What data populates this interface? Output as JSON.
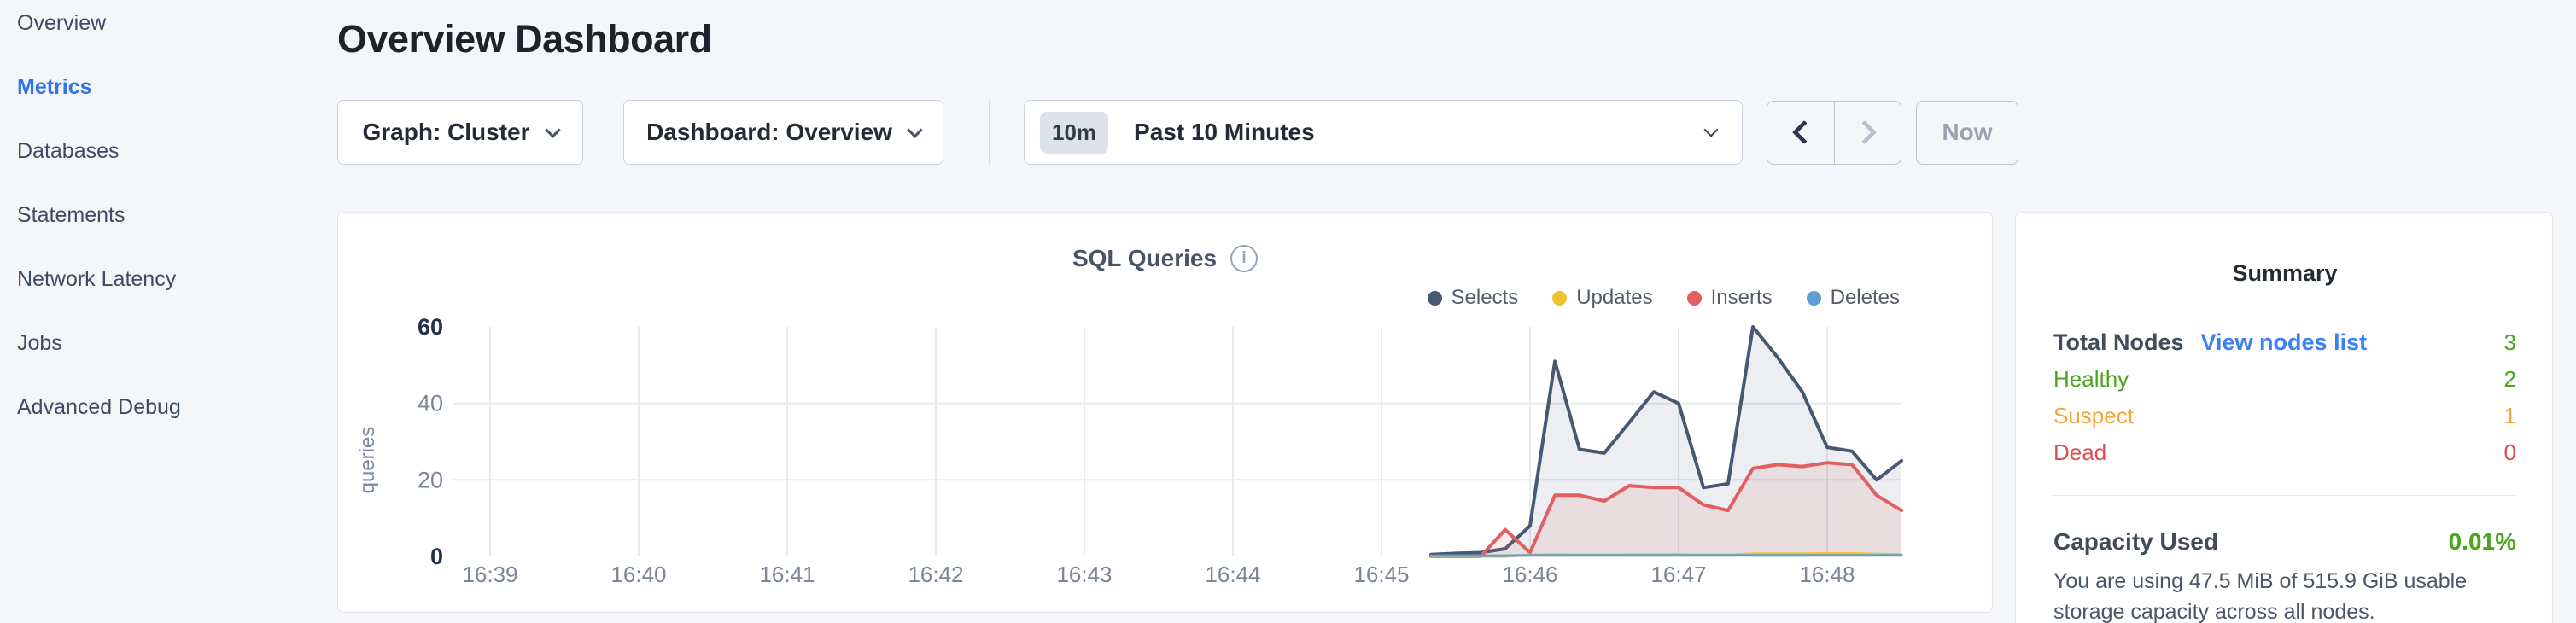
{
  "sidebar": {
    "items": [
      {
        "label": "Overview",
        "active": false
      },
      {
        "label": "Metrics",
        "active": true
      },
      {
        "label": "Databases",
        "active": false
      },
      {
        "label": "Statements",
        "active": false
      },
      {
        "label": "Network Latency",
        "active": false
      },
      {
        "label": "Jobs",
        "active": false
      },
      {
        "label": "Advanced Debug",
        "active": false
      }
    ]
  },
  "header": {
    "title": "Overview Dashboard"
  },
  "toolbar": {
    "graph_dropdown": "Graph: Cluster",
    "dashboard_dropdown": "Dashboard: Overview",
    "time_badge": "10m",
    "time_label": "Past 10 Minutes",
    "now_label": "Now"
  },
  "chart_data": {
    "type": "area",
    "title": "SQL Queries",
    "ylabel": "queries",
    "ylim": [
      0,
      60
    ],
    "grid": true,
    "legend_position": "top-right",
    "x_unit": "time (HH:MM)",
    "x_ticks": [
      {
        "label": "16:39",
        "t": 39
      },
      {
        "label": "16:40",
        "t": 40
      },
      {
        "label": "16:41",
        "t": 41
      },
      {
        "label": "16:42",
        "t": 42
      },
      {
        "label": "16:43",
        "t": 43
      },
      {
        "label": "16:44",
        "t": 44
      },
      {
        "label": "16:45",
        "t": 45
      },
      {
        "label": "16:46",
        "t": 46
      },
      {
        "label": "16:47",
        "t": 47
      },
      {
        "label": "16:48",
        "t": 48
      }
    ],
    "y_ticks": [
      {
        "label": "0",
        "value": 0,
        "bold": true
      },
      {
        "label": "20",
        "value": 20,
        "bold": false
      },
      {
        "label": "40",
        "value": 40,
        "bold": false
      },
      {
        "label": "60",
        "value": 60,
        "bold": true
      }
    ],
    "y_gridlines": [
      20,
      40
    ],
    "x": [
      45.333,
      45.5,
      45.667,
      45.833,
      46.0,
      46.167,
      46.333,
      46.5,
      46.667,
      46.833,
      47.0,
      47.167,
      47.333,
      47.5,
      47.667,
      47.833,
      48.0,
      48.167,
      48.333,
      48.5
    ],
    "series": [
      {
        "name": "Selects",
        "color": "#475872",
        "fill_opacity": 0.1,
        "width": 4,
        "values": [
          0.5,
          0.8,
          1,
          2,
          8,
          51,
          28,
          27,
          35,
          43,
          40,
          18,
          19,
          60,
          52,
          43,
          28.5,
          27.5,
          20,
          25
        ]
      },
      {
        "name": "Inserts",
        "color": "#e25f61",
        "fill_opacity": 0.12,
        "width": 4,
        "values": [
          0,
          0,
          0,
          7,
          1,
          16,
          16,
          14.5,
          18.5,
          18,
          18,
          13.5,
          12,
          23,
          24,
          23.5,
          24.5,
          24,
          16,
          12
        ]
      },
      {
        "name": "Updates",
        "color": "#f1c12f",
        "fill_opacity": 0,
        "width": 3,
        "values": [
          0,
          0,
          0,
          0,
          0.4,
          0.5,
          0.4,
          0.4,
          0.5,
          0.5,
          0.5,
          0.4,
          0.4,
          0.7,
          0.7,
          0.7,
          0.8,
          0.8,
          0.6,
          0.5
        ]
      },
      {
        "name": "Deletes",
        "color": "#5b9fd3",
        "fill_opacity": 0,
        "width": 3,
        "values": [
          0.2,
          0.2,
          0.2,
          0.2,
          0.3,
          0.3,
          0.3,
          0.3,
          0.3,
          0.3,
          0.3,
          0.3,
          0.3,
          0.3,
          0.3,
          0.3,
          0.3,
          0.3,
          0.3,
          0.3
        ]
      }
    ],
    "legend": [
      {
        "label": "Selects",
        "color": "#475872"
      },
      {
        "label": "Updates",
        "color": "#f1c12f"
      },
      {
        "label": "Inserts",
        "color": "#e25f61"
      },
      {
        "label": "Deletes",
        "color": "#5b9fd3"
      }
    ]
  },
  "summary": {
    "title": "Summary",
    "rows": [
      {
        "label": "Total Nodes",
        "link": "View nodes list",
        "value": "3",
        "label_color": "#414b5c",
        "value_color": "#4aa41e"
      },
      {
        "label": "Healthy",
        "link": "",
        "value": "2",
        "label_color": "#4aa41e",
        "value_color": "#4aa41e"
      },
      {
        "label": "Suspect",
        "link": "",
        "value": "1",
        "label_color": "#f3a53b",
        "value_color": "#f3a53b"
      },
      {
        "label": "Dead",
        "link": "",
        "value": "0",
        "label_color": "#e24c4f",
        "value_color": "#e24c4f"
      }
    ],
    "capacity_label": "Capacity Used",
    "capacity_value": "0.01%",
    "capacity_value_color": "#4aa41e",
    "capacity_description": "You are using 47.5 MiB of 515.9 GiB usable storage capacity across all nodes."
  }
}
